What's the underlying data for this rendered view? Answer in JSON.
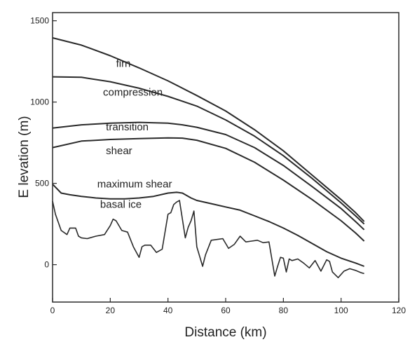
{
  "chart_data": {
    "type": "line",
    "title": "",
    "xlabel": "Distance (km)",
    "ylabel": "E levation (m)",
    "xlim": [
      0,
      120
    ],
    "ylim": [
      -230,
      1550
    ],
    "xticks": [
      0,
      20,
      40,
      60,
      80,
      100,
      120
    ],
    "yticks": [
      0,
      500,
      1000,
      1500
    ],
    "grid": false,
    "legend": "none",
    "line_color": "#2a2a2a",
    "series": [
      {
        "x": [
          0,
          10,
          20,
          30,
          40,
          50,
          60,
          70,
          80,
          90,
          100,
          105,
          108
        ],
        "y": [
          1395,
          1350,
          1285,
          1210,
          1130,
          1040,
          945,
          830,
          700,
          550,
          400,
          320,
          265
        ]
      },
      {
        "x": [
          0,
          10,
          20,
          30,
          40,
          50,
          60,
          70,
          80,
          90,
          100,
          105,
          108
        ],
        "y": [
          1155,
          1152,
          1125,
          1085,
          1035,
          975,
          890,
          790,
          670,
          530,
          380,
          300,
          250
        ]
      },
      {
        "x": [
          0,
          10,
          20,
          30,
          40,
          45,
          50,
          60,
          70,
          80,
          90,
          100,
          105,
          108
        ],
        "y": [
          840,
          860,
          870,
          875,
          870,
          860,
          845,
          800,
          720,
          610,
          480,
          345,
          265,
          215
        ]
      },
      {
        "x": [
          0,
          10,
          20,
          30,
          40,
          45,
          50,
          60,
          70,
          80,
          90,
          100,
          105,
          108
        ],
        "y": [
          720,
          760,
          770,
          775,
          780,
          778,
          765,
          715,
          630,
          520,
          400,
          270,
          195,
          145
        ]
      },
      {
        "x": [
          0,
          3,
          6,
          10,
          15,
          20,
          25,
          30,
          35,
          40,
          43,
          45,
          48,
          50,
          55,
          60,
          65,
          70,
          75,
          80,
          85,
          90,
          95,
          100,
          105,
          108
        ],
        "y": [
          495,
          440,
          430,
          420,
          410,
          405,
          405,
          410,
          420,
          440,
          445,
          440,
          410,
          395,
          375,
          355,
          335,
          300,
          265,
          225,
          180,
          130,
          80,
          40,
          10,
          -10
        ]
      },
      {
        "x": [
          0,
          1,
          3,
          5,
          6,
          8,
          9,
          10,
          12,
          15,
          18,
          20,
          21,
          22,
          24,
          26,
          28,
          30,
          31,
          32,
          34,
          36,
          38,
          40,
          41,
          42,
          43,
          44,
          46,
          47,
          48,
          49,
          50,
          52,
          53,
          55,
          57,
          59,
          61,
          63,
          65,
          67,
          69,
          71,
          73,
          75,
          77,
          78,
          79,
          80,
          81,
          82,
          83,
          85,
          87,
          89,
          91,
          93,
          95,
          96,
          97,
          99,
          101,
          103,
          105,
          107,
          108
        ],
        "y": [
          390,
          310,
          210,
          185,
          225,
          225,
          175,
          165,
          160,
          175,
          185,
          240,
          280,
          270,
          210,
          200,
          110,
          45,
          110,
          120,
          120,
          75,
          95,
          310,
          320,
          370,
          385,
          395,
          165,
          230,
          270,
          330,
          110,
          -10,
          60,
          150,
          155,
          160,
          100,
          125,
          175,
          140,
          145,
          150,
          135,
          140,
          -70,
          -10,
          45,
          40,
          -45,
          35,
          25,
          35,
          10,
          -20,
          25,
          -40,
          30,
          20,
          -45,
          -80,
          -40,
          -25,
          -35,
          -50,
          -55
        ]
      }
    ],
    "annotations": [
      {
        "text": "firn",
        "x": 22,
        "y": 1215
      },
      {
        "text": "compression",
        "x": 17.5,
        "y": 1040
      },
      {
        "text": "transition",
        "x": 18.5,
        "y": 825
      },
      {
        "text": "shear",
        "x": 18.5,
        "y": 680
      },
      {
        "text": "maximum shear",
        "x": 15.5,
        "y": 475
      },
      {
        "text": "basal ice",
        "x": 16.5,
        "y": 350
      }
    ]
  }
}
